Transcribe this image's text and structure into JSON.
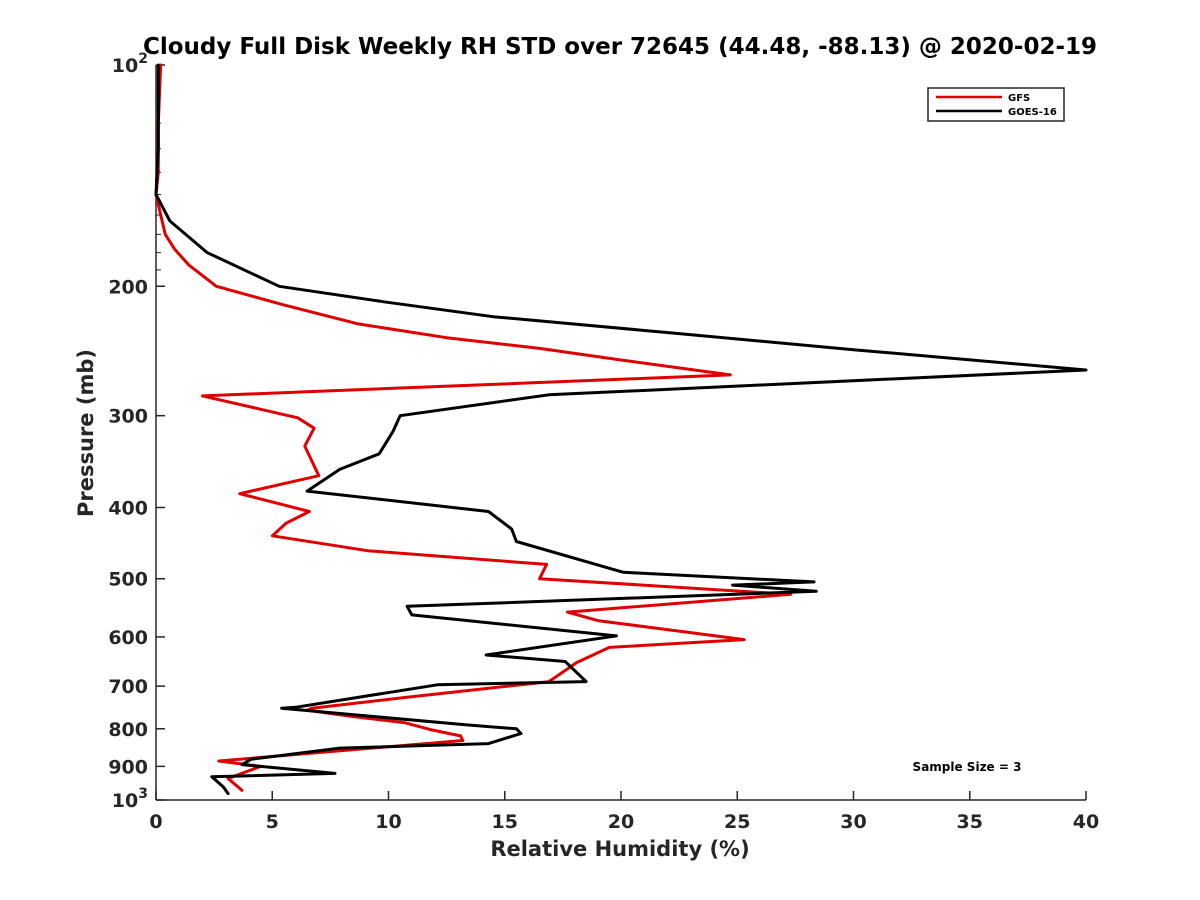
{
  "chart_data": {
    "type": "line",
    "title": "Cloudy Full Disk Weekly RH STD over 72645 (44.48, -88.13) @ 2020-02-19",
    "xlabel": "Relative Humidity (%)",
    "ylabel": "Pressure (mb)",
    "xlim": [
      0,
      40
    ],
    "ylim": [
      1000,
      100
    ],
    "yscale": "log",
    "y_reversed": true,
    "grid": false,
    "x_ticks": [
      0,
      5,
      10,
      15,
      20,
      25,
      30,
      35,
      40
    ],
    "x_tick_labels": [
      "0",
      "5",
      "10",
      "15",
      "20",
      "25",
      "30",
      "35",
      "40"
    ],
    "y_ticks": [
      100,
      200,
      300,
      400,
      500,
      600,
      700,
      800,
      900,
      1000
    ],
    "y_tick_labels": [
      "10^2",
      "200",
      "300",
      "400",
      "500",
      "600",
      "700",
      "800",
      "900",
      "10^3"
    ],
    "legend_position": "top-right",
    "annotation": "Sample Size = 3",
    "series": [
      {
        "name": "GFS",
        "color": "#e00000",
        "points": [
          [
            0.2,
            100
          ],
          [
            0.1,
            120
          ],
          [
            0.1,
            140
          ],
          [
            0.0,
            150
          ],
          [
            0.2,
            160
          ],
          [
            0.4,
            170
          ],
          [
            0.8,
            178
          ],
          [
            1.4,
            187
          ],
          [
            2.6,
            200
          ],
          [
            5.5,
            212
          ],
          [
            8.7,
            225
          ],
          [
            12.5,
            235
          ],
          [
            16.5,
            243
          ],
          [
            20.0,
            252
          ],
          [
            24.7,
            264
          ],
          [
            2.0,
            282
          ],
          [
            6.1,
            302
          ],
          [
            6.8,
            312
          ],
          [
            6.4,
            330
          ],
          [
            7.0,
            362
          ],
          [
            3.6,
            383
          ],
          [
            6.6,
            405
          ],
          [
            5.6,
            420
          ],
          [
            5.0,
            437
          ],
          [
            9.1,
            458
          ],
          [
            16.8,
            478
          ],
          [
            16.5,
            500
          ],
          [
            27.3,
            525
          ],
          [
            17.7,
            555
          ],
          [
            19.0,
            570
          ],
          [
            25.3,
            605
          ],
          [
            19.5,
            620
          ],
          [
            18.1,
            650
          ],
          [
            16.9,
            690
          ],
          [
            10.8,
            725
          ],
          [
            6.7,
            750
          ],
          [
            6.5,
            755
          ],
          [
            8.5,
            770
          ],
          [
            10.7,
            785
          ],
          [
            11.8,
            802
          ],
          [
            13.1,
            818
          ],
          [
            13.2,
            830
          ],
          [
            2.7,
            885
          ],
          [
            4.5,
            900
          ],
          [
            3.1,
            935
          ],
          [
            3.7,
            970
          ]
        ]
      },
      {
        "name": "GOES-16",
        "color": "#000000",
        "points": [
          [
            0.1,
            100
          ],
          [
            0.1,
            130
          ],
          [
            0.0,
            150
          ],
          [
            0.6,
            163
          ],
          [
            2.2,
            180
          ],
          [
            5.3,
            200
          ],
          [
            9.8,
            210
          ],
          [
            14.5,
            220
          ],
          [
            22.5,
            232
          ],
          [
            30.0,
            244
          ],
          [
            40.0,
            260
          ],
          [
            16.9,
            281
          ],
          [
            10.5,
            300
          ],
          [
            10.2,
            315
          ],
          [
            9.6,
            338
          ],
          [
            7.9,
            355
          ],
          [
            6.5,
            380
          ],
          [
            14.3,
            405
          ],
          [
            15.3,
            428
          ],
          [
            15.5,
            445
          ],
          [
            20.1,
            490
          ],
          [
            28.3,
            505
          ],
          [
            24.8,
            510
          ],
          [
            28.4,
            520
          ],
          [
            10.8,
            545
          ],
          [
            11.0,
            560
          ],
          [
            19.8,
            598
          ],
          [
            14.2,
            635
          ],
          [
            17.6,
            648
          ],
          [
            18.5,
            690
          ],
          [
            12.1,
            697
          ],
          [
            6.0,
            748
          ],
          [
            5.4,
            750
          ],
          [
            13.3,
            790
          ],
          [
            15.5,
            800
          ],
          [
            15.7,
            812
          ],
          [
            14.3,
            838
          ],
          [
            7.9,
            850
          ],
          [
            4.1,
            880
          ],
          [
            3.7,
            895
          ],
          [
            7.7,
            920
          ],
          [
            2.4,
            930
          ],
          [
            2.9,
            960
          ],
          [
            3.1,
            980
          ]
        ]
      }
    ]
  }
}
